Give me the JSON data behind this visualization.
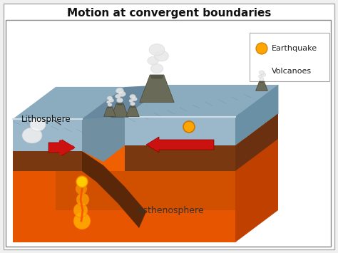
{
  "title": "Motion at convergent boundaries",
  "title_fontsize": 11,
  "bg_color": "#f0f0f0",
  "inner_bg": "#ffffff",
  "ast_color": "#e85500",
  "ast_top_color": "#f06000",
  "ast_right_color": "#c04000",
  "crust_color": "#7a3810",
  "crust_dark": "#5a2808",
  "plate_top_color": "#8aacbe",
  "plate_front_color": "#9ab8ca",
  "plate_right_color": "#6a90a5",
  "plate_back_color": "#78a0b0",
  "plate_edge_color": "#c8d8e0",
  "trench_color": "#607888",
  "arrow_color": "#cc1111",
  "lava_color": "#ff6600",
  "lava_glow": "#ffaa00",
  "vol_cone_color": "#6a6a58",
  "vol_edge_color": "#444433",
  "smoke_color": "#e0e0e0",
  "lithosphere_label": "Lithosphere",
  "asthenosphere_label": "Asthenosphere",
  "eq_label": "Earthquake",
  "vol_label": "Volcanoes",
  "eq_color": "#FFA500",
  "eq_edge": "#cc7700"
}
